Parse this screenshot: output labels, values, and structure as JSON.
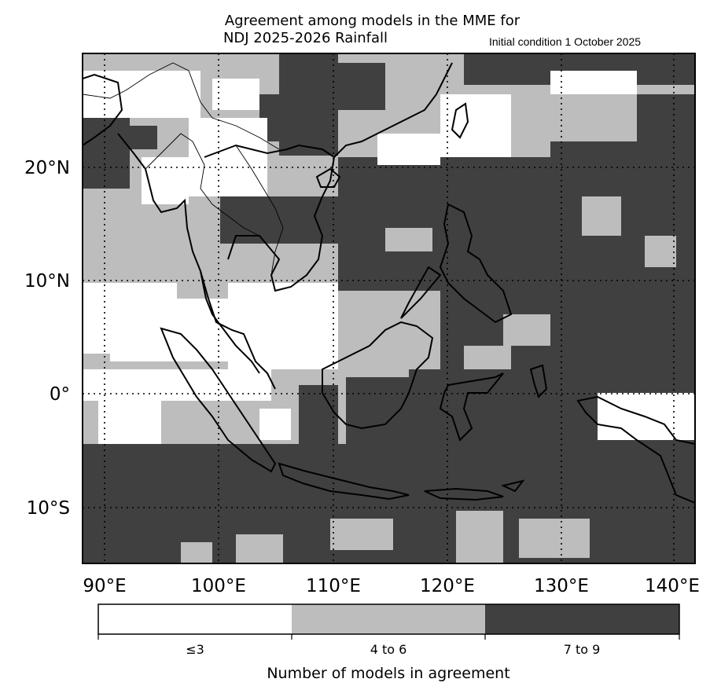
{
  "title": {
    "line1": "Agreement among models in the MME for",
    "line2": "NDJ 2025-2026  Rainfall",
    "init": "Initial condition 1 October 2025"
  },
  "map": {
    "lon_range": [
      88,
      141
    ],
    "lat_range": [
      -15,
      30
    ],
    "lon_ticks": [
      "90°E",
      "100°E",
      "110°E",
      "120°E",
      "130°E",
      "140°E"
    ],
    "lat_ticks": [
      "20°N",
      "10°N",
      "0°",
      "10°S"
    ],
    "categories": [
      "≤3",
      "4 to 6",
      "7 to 9"
    ],
    "category_colors": [
      "#ffffff",
      "#bdbdbd",
      "#404040"
    ],
    "coastline_color": "#000000",
    "gridlines": "dotted"
  },
  "colorbar": {
    "labels": [
      "≤3",
      "4 to 6",
      "7 to 9"
    ],
    "title": "Number of models in agreement"
  }
}
